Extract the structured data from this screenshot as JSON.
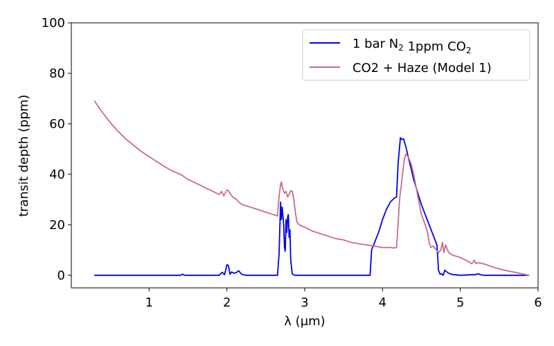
{
  "chart_data": {
    "type": "line",
    "title": "",
    "xlabel": "λ (μm)",
    "ylabel": "transit depth (ppm)",
    "xlim": [
      0.0,
      6.0
    ],
    "ylim": [
      -5,
      100
    ],
    "xticks": [
      1,
      2,
      3,
      4,
      5,
      6
    ],
    "yticks": [
      0,
      20,
      40,
      60,
      80,
      100
    ],
    "grid": false,
    "legend_position": "top-right",
    "series": [
      {
        "name": "1 bar N2 1ppm CO2",
        "legend_parts": [
          {
            "t": "1 bar N",
            "sub": false
          },
          {
            "t": "2",
            "sub": true
          },
          {
            "t": " 1ppm CO",
            "sub": false
          },
          {
            "t": "2",
            "sub": true
          }
        ],
        "color": "#0000e6",
        "points": [
          [
            0.3,
            0
          ],
          [
            1.4,
            0
          ],
          [
            1.43,
            0.4
          ],
          [
            1.46,
            0
          ],
          [
            1.9,
            0
          ],
          [
            1.94,
            1.2
          ],
          [
            1.97,
            0.2
          ],
          [
            2.0,
            4.2
          ],
          [
            2.02,
            3.8
          ],
          [
            2.04,
            0.4
          ],
          [
            2.06,
            1.3
          ],
          [
            2.09,
            0.8
          ],
          [
            2.12,
            1.0
          ],
          [
            2.15,
            1.8
          ],
          [
            2.19,
            0.4
          ],
          [
            2.24,
            0
          ],
          [
            2.65,
            0
          ],
          [
            2.67,
            8
          ],
          [
            2.69,
            29
          ],
          [
            2.7,
            22
          ],
          [
            2.71,
            27
          ],
          [
            2.73,
            20
          ],
          [
            2.74,
            11
          ],
          [
            2.75,
            9.5
          ],
          [
            2.76,
            22
          ],
          [
            2.77,
            17
          ],
          [
            2.78,
            23
          ],
          [
            2.79,
            24
          ],
          [
            2.8,
            15
          ],
          [
            2.81,
            18
          ],
          [
            2.82,
            6
          ],
          [
            2.84,
            0.6
          ],
          [
            2.87,
            0
          ],
          [
            3.84,
            0
          ],
          [
            3.86,
            10
          ],
          [
            3.95,
            17
          ],
          [
            4.0,
            22
          ],
          [
            4.05,
            26
          ],
          [
            4.1,
            29
          ],
          [
            4.15,
            30.5
          ],
          [
            4.18,
            31
          ],
          [
            4.2,
            44
          ],
          [
            4.23,
            54.5
          ],
          [
            4.25,
            53.8
          ],
          [
            4.27,
            54
          ],
          [
            4.3,
            51
          ],
          [
            4.33,
            47
          ],
          [
            4.37,
            42
          ],
          [
            4.4,
            38
          ],
          [
            4.45,
            33
          ],
          [
            4.5,
            28
          ],
          [
            4.55,
            24
          ],
          [
            4.6,
            20
          ],
          [
            4.65,
            16
          ],
          [
            4.7,
            12
          ],
          [
            4.72,
            2
          ],
          [
            4.74,
            0.4
          ],
          [
            4.76,
            0.6
          ],
          [
            4.78,
            0
          ],
          [
            4.8,
            2.0
          ],
          [
            4.82,
            1.5
          ],
          [
            4.85,
            0.8
          ],
          [
            4.9,
            0.3
          ],
          [
            5.0,
            0
          ],
          [
            5.2,
            0.3
          ],
          [
            5.23,
            0.6
          ],
          [
            5.26,
            0.2
          ],
          [
            5.3,
            0
          ],
          [
            5.88,
            0
          ]
        ]
      },
      {
        "name": "CO2 + Haze (Model 1)",
        "legend_parts": [
          {
            "t": "CO2 + Haze (Model 1)",
            "sub": false
          }
        ],
        "color": "#c76b8a",
        "points": [
          [
            0.3,
            69
          ],
          [
            0.4,
            64.5
          ],
          [
            0.5,
            60.5
          ],
          [
            0.6,
            57
          ],
          [
            0.7,
            54
          ],
          [
            0.8,
            51.5
          ],
          [
            0.9,
            49
          ],
          [
            1.0,
            47
          ],
          [
            1.1,
            45
          ],
          [
            1.2,
            43
          ],
          [
            1.3,
            41.3
          ],
          [
            1.4,
            40
          ],
          [
            1.43,
            39.5
          ],
          [
            1.45,
            39
          ],
          [
            1.5,
            38
          ],
          [
            1.6,
            36.5
          ],
          [
            1.7,
            35
          ],
          [
            1.8,
            33.5
          ],
          [
            1.9,
            32
          ],
          [
            1.93,
            33.2
          ],
          [
            1.96,
            31.5
          ],
          [
            2.0,
            33.8
          ],
          [
            2.02,
            33.5
          ],
          [
            2.05,
            32
          ],
          [
            2.08,
            30.8
          ],
          [
            2.12,
            30.2
          ],
          [
            2.15,
            29
          ],
          [
            2.2,
            28
          ],
          [
            2.3,
            27
          ],
          [
            2.4,
            26
          ],
          [
            2.5,
            25
          ],
          [
            2.6,
            24
          ],
          [
            2.65,
            23.5
          ],
          [
            2.67,
            31
          ],
          [
            2.69,
            36
          ],
          [
            2.7,
            37
          ],
          [
            2.72,
            34
          ],
          [
            2.74,
            32.5
          ],
          [
            2.76,
            33.2
          ],
          [
            2.78,
            31
          ],
          [
            2.8,
            32
          ],
          [
            2.82,
            33.5
          ],
          [
            2.84,
            33.3
          ],
          [
            2.86,
            30
          ],
          [
            2.88,
            25
          ],
          [
            2.9,
            21
          ],
          [
            2.93,
            20
          ],
          [
            3.0,
            19
          ],
          [
            3.1,
            17.5
          ],
          [
            3.2,
            16.5
          ],
          [
            3.3,
            15.5
          ],
          [
            3.4,
            14.5
          ],
          [
            3.5,
            14
          ],
          [
            3.6,
            13
          ],
          [
            3.7,
            12.5
          ],
          [
            3.8,
            12
          ],
          [
            3.9,
            11.5
          ],
          [
            4.0,
            11
          ],
          [
            4.1,
            11
          ],
          [
            4.15,
            10.8
          ],
          [
            4.18,
            11
          ],
          [
            4.2,
            20
          ],
          [
            4.22,
            30
          ],
          [
            4.25,
            38
          ],
          [
            4.28,
            46
          ],
          [
            4.3,
            48
          ],
          [
            4.33,
            47
          ],
          [
            4.37,
            44
          ],
          [
            4.4,
            40
          ],
          [
            4.45,
            32
          ],
          [
            4.5,
            24
          ],
          [
            4.55,
            20
          ],
          [
            4.58,
            17
          ],
          [
            4.6,
            13
          ],
          [
            4.62,
            11
          ],
          [
            4.65,
            11.5
          ],
          [
            4.68,
            10.5
          ],
          [
            4.72,
            9
          ],
          [
            4.75,
            10
          ],
          [
            4.77,
            13
          ],
          [
            4.79,
            9
          ],
          [
            4.81,
            12
          ],
          [
            4.83,
            10.5
          ],
          [
            4.85,
            9
          ],
          [
            4.9,
            8
          ],
          [
            5.0,
            7
          ],
          [
            5.1,
            5.5
          ],
          [
            5.15,
            4.5
          ],
          [
            5.18,
            6
          ],
          [
            5.2,
            4.6
          ],
          [
            5.23,
            5
          ],
          [
            5.26,
            4.8
          ],
          [
            5.3,
            4.5
          ],
          [
            5.4,
            3.5
          ],
          [
            5.5,
            2.5
          ],
          [
            5.6,
            1.8
          ],
          [
            5.7,
            1.2
          ],
          [
            5.8,
            0.5
          ],
          [
            5.88,
            0
          ]
        ]
      }
    ]
  }
}
